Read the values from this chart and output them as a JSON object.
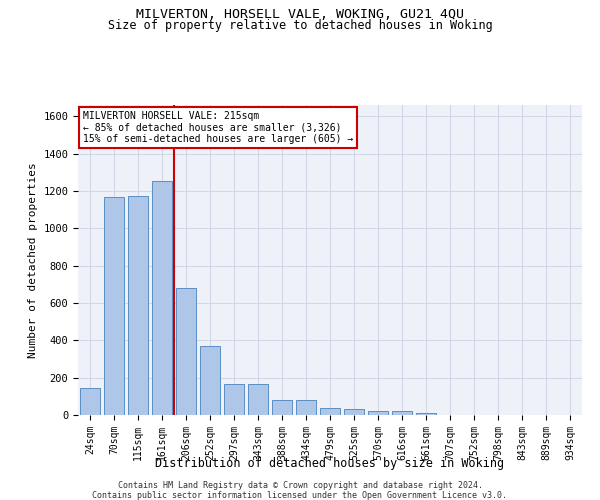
{
  "title_line1": "MILVERTON, HORSELL VALE, WOKING, GU21 4QU",
  "title_line2": "Size of property relative to detached houses in Woking",
  "xlabel": "Distribution of detached houses by size in Woking",
  "ylabel": "Number of detached properties",
  "categories": [
    "24sqm",
    "70sqm",
    "115sqm",
    "161sqm",
    "206sqm",
    "252sqm",
    "297sqm",
    "343sqm",
    "388sqm",
    "434sqm",
    "479sqm",
    "525sqm",
    "570sqm",
    "616sqm",
    "661sqm",
    "707sqm",
    "752sqm",
    "798sqm",
    "843sqm",
    "889sqm",
    "934sqm"
  ],
  "bar_heights": [
    145,
    1165,
    1175,
    1255,
    680,
    370,
    165,
    165,
    80,
    80,
    38,
    33,
    22,
    22,
    13,
    0,
    0,
    0,
    0,
    0,
    0
  ],
  "bar_color": "#aec6e8",
  "bar_edge_color": "#5a8fc4",
  "grid_color": "#d0d8e8",
  "background_color": "#eef2f8",
  "vline_x_index": 3.52,
  "vline_color": "#cc0000",
  "annotation_text": "MILVERTON HORSELL VALE: 215sqm\n← 85% of detached houses are smaller (3,326)\n15% of semi-detached houses are larger (605) →",
  "annotation_box_color": "#ffffff",
  "annotation_border_color": "#cc0000",
  "ylim": [
    0,
    1660
  ],
  "yticks": [
    0,
    200,
    400,
    600,
    800,
    1000,
    1200,
    1400,
    1600
  ],
  "footer_line1": "Contains HM Land Registry data © Crown copyright and database right 2024.",
  "footer_line2": "Contains public sector information licensed under the Open Government Licence v3.0."
}
